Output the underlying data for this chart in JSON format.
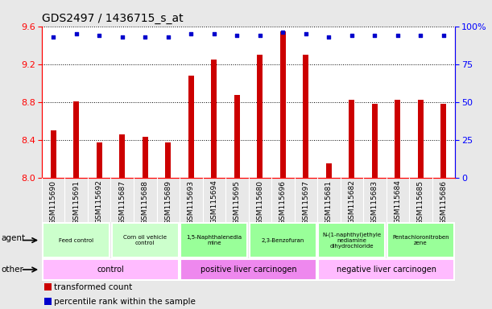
{
  "title": "GDS2497 / 1436715_s_at",
  "samples": [
    "GSM115690",
    "GSM115691",
    "GSM115692",
    "GSM115687",
    "GSM115688",
    "GSM115689",
    "GSM115693",
    "GSM115694",
    "GSM115695",
    "GSM115680",
    "GSM115696",
    "GSM115697",
    "GSM115681",
    "GSM115682",
    "GSM115683",
    "GSM115684",
    "GSM115685",
    "GSM115686"
  ],
  "transformed_counts": [
    8.5,
    8.81,
    8.37,
    8.46,
    8.43,
    8.37,
    9.08,
    9.25,
    8.87,
    9.3,
    9.55,
    9.3,
    8.15,
    8.82,
    8.78,
    8.82,
    8.82,
    8.78
  ],
  "percentile_ranks": [
    93,
    95,
    94,
    93,
    93,
    93,
    95,
    95,
    94,
    94,
    96,
    95,
    93,
    94,
    94,
    94,
    94,
    94
  ],
  "ylim": [
    8.0,
    9.6
  ],
  "yticks": [
    8.0,
    8.4,
    8.8,
    9.2,
    9.6
  ],
  "right_yticks": [
    0,
    25,
    50,
    75,
    100
  ],
  "bar_color": "#cc0000",
  "dot_color": "#0000cc",
  "agent_groups": [
    {
      "label": "Feed control",
      "start": 0,
      "end": 3,
      "color": "#ccffcc"
    },
    {
      "label": "Corn oil vehicle\ncontrol",
      "start": 3,
      "end": 6,
      "color": "#ccffcc"
    },
    {
      "label": "1,5-Naphthalenedia\nmine",
      "start": 6,
      "end": 9,
      "color": "#99ff99"
    },
    {
      "label": "2,3-Benzofuran",
      "start": 9,
      "end": 12,
      "color": "#99ff99"
    },
    {
      "label": "N-(1-naphthyl)ethyle\nnediamine\ndihydrochloride",
      "start": 12,
      "end": 15,
      "color": "#99ff99"
    },
    {
      "label": "Pentachloronitroben\nzene",
      "start": 15,
      "end": 18,
      "color": "#99ff99"
    }
  ],
  "other_groups": [
    {
      "label": "control",
      "start": 0,
      "end": 6,
      "color": "#ffbbff"
    },
    {
      "label": "positive liver carcinogen",
      "start": 6,
      "end": 12,
      "color": "#ee88ee"
    },
    {
      "label": "negative liver carcinogen",
      "start": 12,
      "end": 18,
      "color": "#ffbbff"
    }
  ],
  "legend_items": [
    {
      "color": "#cc0000",
      "label": "transformed count"
    },
    {
      "color": "#0000cc",
      "label": "percentile rank within the sample"
    }
  ],
  "background_color": "#e8e8e8",
  "plot_bg": "#ffffff",
  "xtick_bg": "#d0d0d0",
  "title_fontsize": 10,
  "tick_fontsize": 6.5,
  "bar_width": 0.25
}
